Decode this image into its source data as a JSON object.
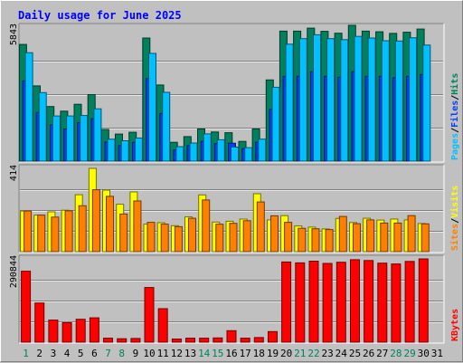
{
  "chart_data": {
    "type": "bar",
    "title": "Daily usage for June 2025",
    "categories": [
      "1",
      "2",
      "3",
      "4",
      "5",
      "6",
      "7",
      "8",
      "9",
      "10",
      "11",
      "12",
      "13",
      "14",
      "15",
      "16",
      "17",
      "18",
      "19",
      "20",
      "21",
      "22",
      "23",
      "24",
      "25",
      "26",
      "27",
      "28",
      "29",
      "30",
      "31"
    ],
    "weekend_days": [
      "1",
      "7",
      "8",
      "14",
      "15",
      "21",
      "22",
      "28",
      "29"
    ],
    "panels": [
      {
        "id": "hits",
        "ymax": 5843,
        "max_label": "5843",
        "axis_labels": [
          {
            "text": "Pages",
            "color": "#00c0ff"
          },
          {
            "text": "Files",
            "color": "#0040ff"
          },
          {
            "text": "Hits",
            "color": "#00805c"
          }
        ],
        "series": [
          {
            "name": "Hits",
            "color": "#00805c",
            "values": [
              5090,
              3280,
              2380,
              2180,
              2480,
              2900,
              1380,
              1180,
              1260,
              5370,
              3320,
              820,
              1070,
              1400,
              1270,
              1240,
              860,
              1400,
              3540,
              5670,
              5670,
              5800,
              5660,
              5580,
              5920,
              5670,
              5640,
              5570,
              5620,
              5760,
              null
            ]
          },
          {
            "name": "Files",
            "color": "#0040ff",
            "values": [
              3500,
              2120,
              1580,
              1400,
              1680,
              1850,
              830,
              680,
              820,
              3600,
              2080,
              490,
              680,
              860,
              760,
              780,
              550,
              830,
              2260,
              3700,
              3700,
              3900,
              3700,
              3660,
              3900,
              3700,
              3700,
              3640,
              3700,
              3780,
              null
            ]
          },
          {
            "name": "Pages",
            "color": "#00c0ff",
            "values": [
              4730,
              2990,
              1970,
              1970,
              1990,
              2280,
              960,
              890,
              1010,
              4700,
              3000,
              630,
              790,
              1190,
              930,
              610,
              590,
              960,
              3220,
              5100,
              5340,
              5510,
              5340,
              5300,
              5440,
              5370,
              5250,
              5240,
              5380,
              5060,
              null
            ]
          }
        ]
      },
      {
        "id": "visits",
        "ymax": 414,
        "max_label": "414",
        "axis_labels": [
          {
            "text": "Sites",
            "color": "#ff8000"
          },
          {
            "text": "Visits",
            "color": "#ffff00"
          }
        ],
        "series": [
          {
            "name": "Visits",
            "color": "#ffff00",
            "values": [
              202,
              182,
              198,
              206,
              283,
              414,
              306,
              236,
              297,
              137,
              144,
              129,
              173,
              282,
              147,
              151,
              162,
              288,
              158,
              179,
              128,
              122,
              113,
              165,
              145,
              166,
              157,
              162,
              158,
              140,
              null
            ]
          },
          {
            "name": "Sites",
            "color": "#ff8000",
            "values": [
              202,
              182,
              172,
              203,
              228,
              308,
              275,
              187,
              252,
              146,
              137,
              124,
              166,
              257,
              137,
              141,
              154,
              247,
              178,
              146,
              116,
              114,
              110,
              175,
              139,
              158,
              142,
              142,
              179,
              138,
              null
            ]
          }
        ]
      },
      {
        "id": "kbytes",
        "ymax": 290844,
        "max_label": "290844",
        "axis_labels": [
          {
            "text": "KBytes",
            "color": "#ff0000"
          }
        ],
        "series": [
          {
            "name": "KBytes",
            "color": "#ff0000",
            "values": [
              248000,
              137000,
              77000,
              68000,
              80000,
              85000,
              14000,
              12000,
              13000,
              191000,
              117000,
              11000,
              14000,
              14000,
              15000,
              40000,
              14000,
              16000,
              37000,
              280000,
              277000,
              283000,
              275000,
              279000,
              288000,
              285000,
              276000,
              273000,
              282000,
              290844,
              null
            ]
          }
        ]
      }
    ]
  }
}
